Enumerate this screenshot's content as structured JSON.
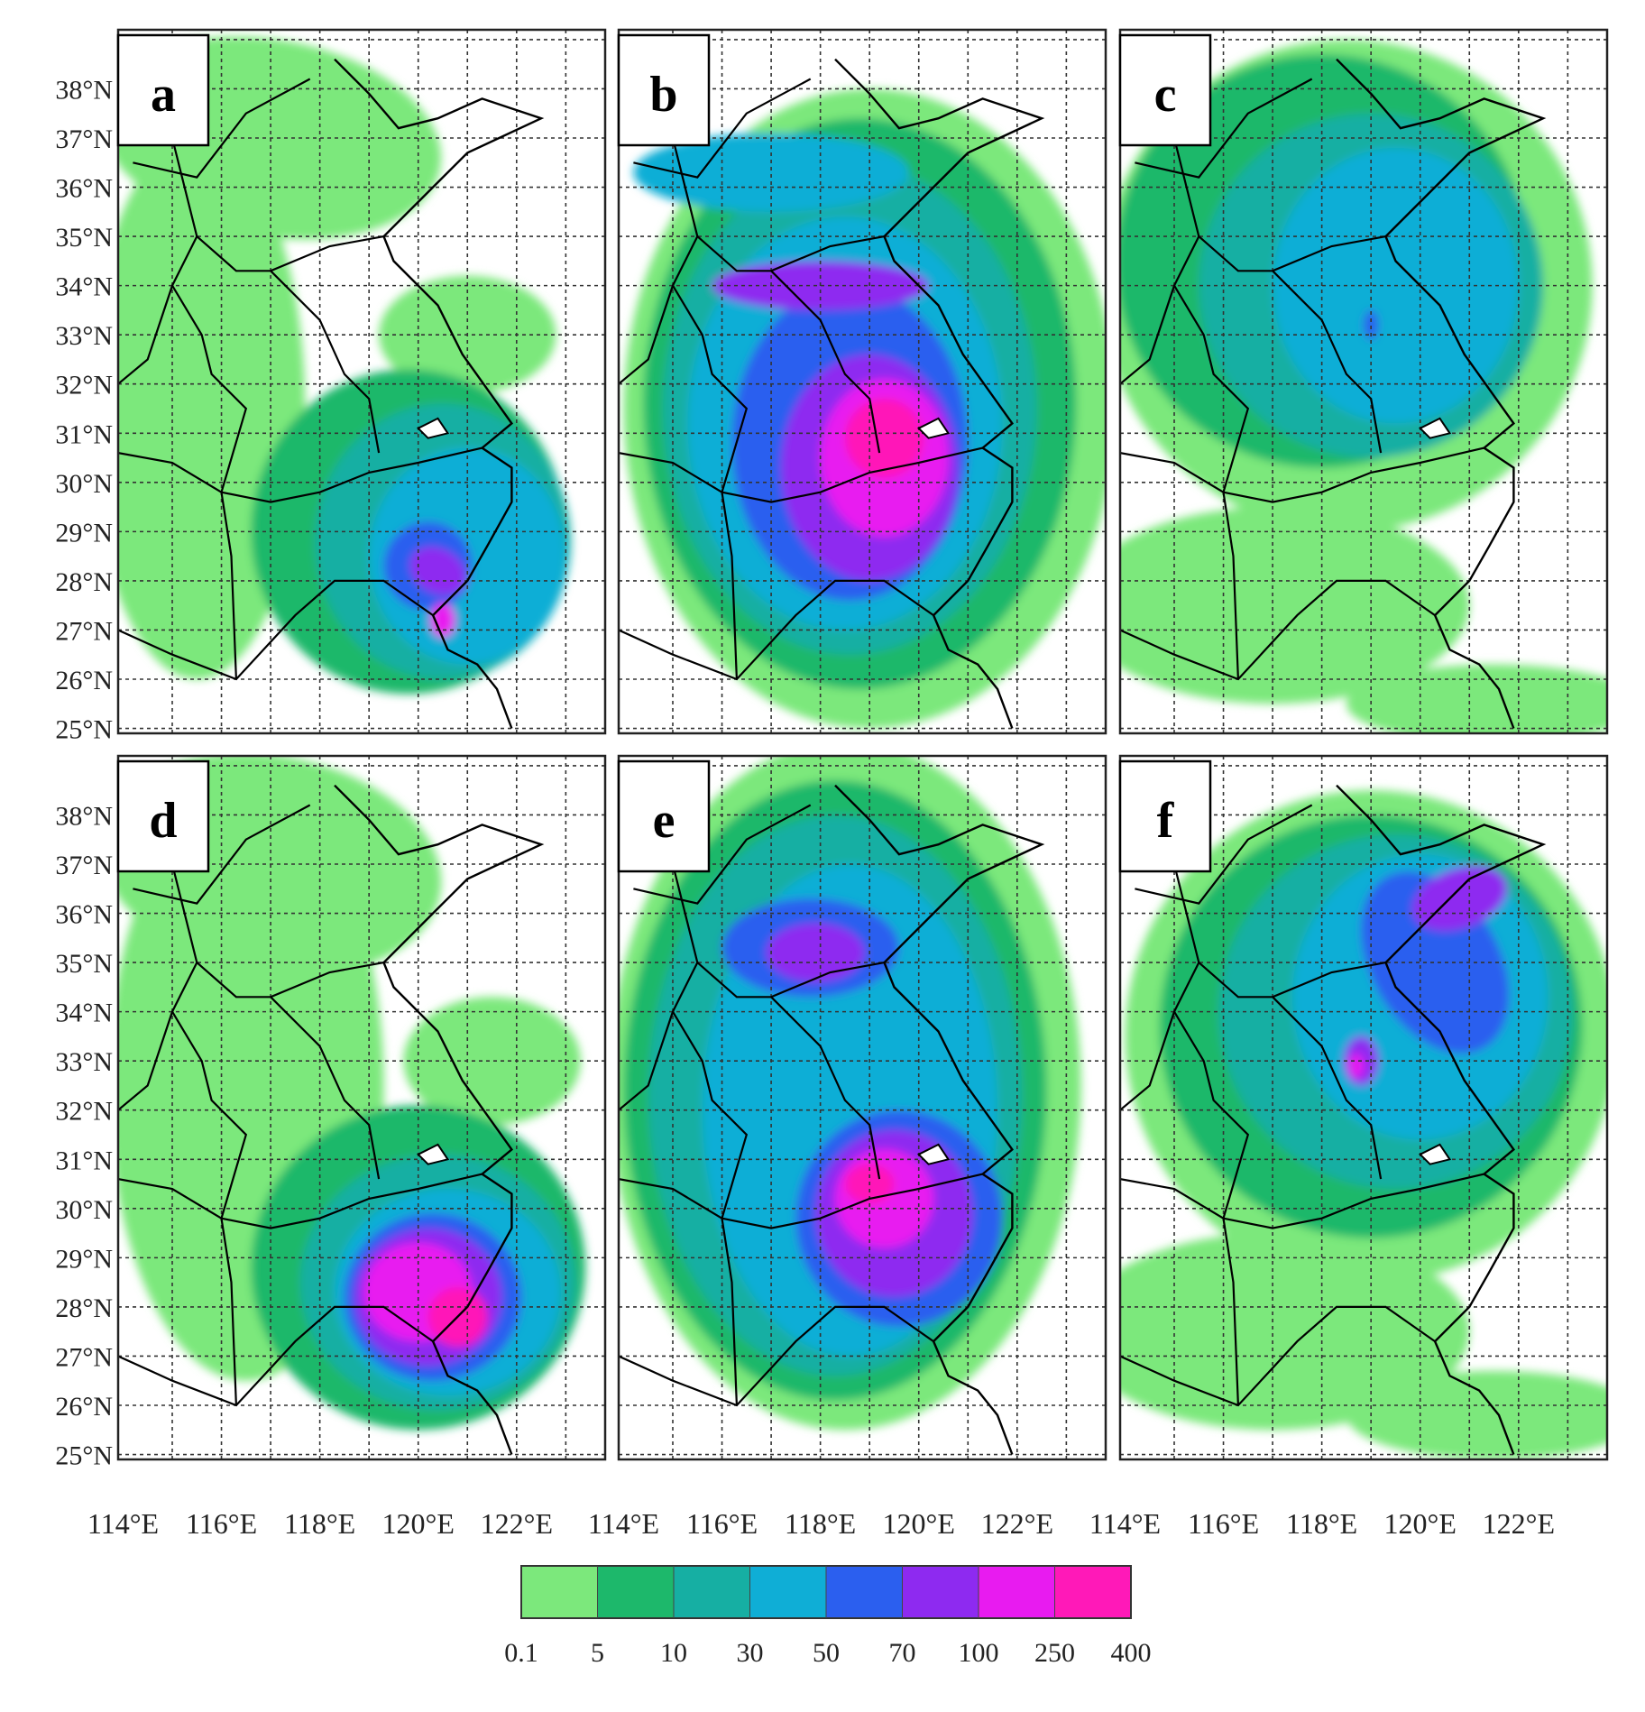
{
  "panels": [
    {
      "letter": "a",
      "row": 0,
      "col": 0,
      "pattern": "a"
    },
    {
      "letter": "b",
      "row": 0,
      "col": 1,
      "pattern": "b"
    },
    {
      "letter": "c",
      "row": 0,
      "col": 2,
      "pattern": "c"
    },
    {
      "letter": "d",
      "row": 1,
      "col": 0,
      "pattern": "d"
    },
    {
      "letter": "e",
      "row": 1,
      "col": 1,
      "pattern": "e"
    },
    {
      "letter": "f",
      "row": 1,
      "col": 2,
      "pattern": "f"
    }
  ],
  "lat_ticks": [
    "25°N",
    "26°N",
    "27°N",
    "28°N",
    "29°N",
    "30°N",
    "31°N",
    "32°N",
    "33°N",
    "34°N",
    "35°N",
    "36°N",
    "37°N",
    "38°N"
  ],
  "lon_ticks": [
    "114°E",
    "116°E",
    "118°E",
    "120°E",
    "122°E"
  ],
  "lon_range": [
    113.9,
    123.8
  ],
  "lat_range": [
    24.9,
    39.2
  ],
  "colorbar": {
    "levels": [
      "0.1",
      "5",
      "10",
      "30",
      "50",
      "70",
      "100",
      "250",
      "400"
    ],
    "colors": [
      "#7CE87C",
      "#1DB86B",
      "#16AFA3",
      "#0FAED6",
      "#2B5FEF",
      "#8E2AF0",
      "#E81BF0",
      "#FF19B8"
    ]
  }
}
